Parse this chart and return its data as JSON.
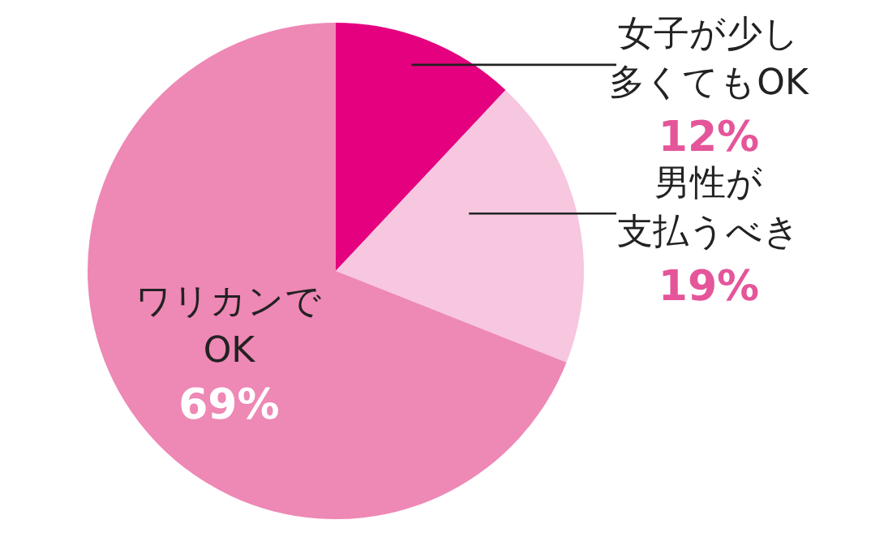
{
  "chart_data": {
    "type": "pie",
    "categories": [
      "女子が少し多くてもOK",
      "男性が支払うべき",
      "ワリカンでOK"
    ],
    "values": [
      12,
      19,
      69
    ],
    "value_labels": [
      "12%",
      "19%",
      "69%"
    ],
    "colors": [
      "#e4007f",
      "#f7c6df",
      "#ee88b5"
    ],
    "legend": false
  }
}
